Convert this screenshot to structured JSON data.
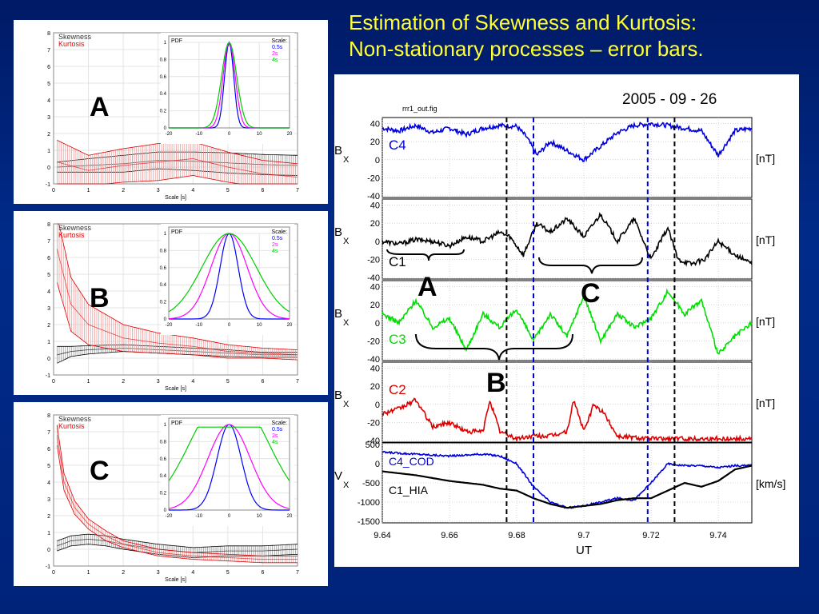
{
  "slide": {
    "title_line1": "Estimation of Skewness and Kurtosis:",
    "title_line2": "Non-stationary processes – error bars."
  },
  "colors": {
    "background": "#002b8a",
    "title": "#ffff33",
    "skewness": "#000000",
    "kurtosis": "#e00000",
    "c4": "#0000dd",
    "c1": "#000000",
    "c3": "#00dd00",
    "c2": "#dd0000"
  },
  "chart_data": [
    {
      "type": "line",
      "panel_letter": "A",
      "legend": [
        "Skewness",
        "Kurtosis"
      ],
      "xlabel": "Scale [s]",
      "xlim": [
        0,
        7
      ],
      "ylim": [
        -1,
        8
      ],
      "xticks": [
        0,
        1,
        2,
        3,
        4,
        5,
        6,
        7
      ],
      "yticks": [
        -1,
        0,
        1,
        2,
        3,
        4,
        5,
        6,
        7,
        8
      ],
      "series": [
        {
          "name": "Skewness",
          "x": [
            0.1,
            1,
            2,
            3,
            4,
            5,
            6,
            7
          ],
          "values": [
            0.0,
            0.1,
            0.2,
            0.4,
            0.35,
            0.25,
            0.15,
            0.1
          ],
          "err": [
            0.3,
            0.4,
            0.5,
            0.5,
            0.55,
            0.6,
            0.6,
            0.6
          ]
        },
        {
          "name": "Kurtosis",
          "x": [
            0.1,
            1,
            2,
            3,
            4,
            5,
            6,
            7
          ],
          "values": [
            0.3,
            -0.2,
            0.1,
            0.3,
            0.5,
            0.0,
            -0.4,
            -0.6
          ],
          "err": [
            1.3,
            0.9,
            1.0,
            1.1,
            1.0,
            0.9,
            0.8,
            0.8
          ]
        }
      ],
      "inset": {
        "title": "PDF",
        "legend_title": "Scale:",
        "legend": [
          "0.5s",
          "2s",
          "4s"
        ],
        "xlim": [
          -20,
          20
        ],
        "ylim": [
          0,
          1
        ],
        "xticks": [
          -20,
          -10,
          0,
          10,
          20
        ],
        "yticks": [
          0,
          0.2,
          0.4,
          0.6,
          0.8,
          1
        ],
        "widths": [
          1.5,
          2.0,
          2.5
        ]
      }
    },
    {
      "type": "line",
      "panel_letter": "B",
      "legend": [
        "Skewness",
        "Kurtosis"
      ],
      "xlabel": "Scale [s]",
      "xlim": [
        0,
        7
      ],
      "ylim": [
        -1,
        8
      ],
      "xticks": [
        0,
        1,
        2,
        3,
        4,
        5,
        6,
        7
      ],
      "yticks": [
        -1,
        0,
        1,
        2,
        3,
        4,
        5,
        6,
        7,
        8
      ],
      "series": [
        {
          "name": "Skewness",
          "x": [
            0.1,
            0.5,
            1,
            2,
            3,
            4,
            5,
            6,
            7
          ],
          "values": [
            0.2,
            0.4,
            0.5,
            0.6,
            0.5,
            0.4,
            0.3,
            0.2,
            0.2
          ],
          "err": [
            0.5,
            0.3,
            0.25,
            0.2,
            0.2,
            0.2,
            0.2,
            0.15,
            0.15
          ]
        },
        {
          "name": "Kurtosis",
          "x": [
            0.1,
            0.5,
            1,
            2,
            3,
            4,
            5,
            6,
            7
          ],
          "values": [
            6.5,
            3.2,
            2.0,
            1.2,
            0.9,
            0.7,
            0.4,
            0.3,
            0.2
          ],
          "err": [
            2.0,
            1.6,
            1.2,
            0.8,
            0.6,
            0.5,
            0.4,
            0.3,
            0.3
          ]
        }
      ],
      "inset": {
        "title": "PDF",
        "legend_title": "Scale:",
        "legend": [
          "0.5s",
          "2s",
          "4s"
        ],
        "xlim": [
          -20,
          20
        ],
        "ylim": [
          0,
          1
        ],
        "xticks": [
          -20,
          -10,
          0,
          10,
          20
        ],
        "yticks": [
          0,
          0.2,
          0.4,
          0.6,
          0.8,
          1
        ],
        "widths": [
          3,
          6,
          9
        ]
      }
    },
    {
      "type": "line",
      "panel_letter": "C",
      "legend": [
        "Skewness",
        "Kurtosis"
      ],
      "xlabel": "Scale [s]",
      "xlim": [
        0,
        7
      ],
      "ylim": [
        -1,
        8
      ],
      "xticks": [
        0,
        1,
        2,
        3,
        4,
        5,
        6,
        7
      ],
      "yticks": [
        -1,
        0,
        1,
        2,
        3,
        4,
        5,
        6,
        7,
        8
      ],
      "series": [
        {
          "name": "Skewness",
          "x": [
            0.1,
            0.5,
            1,
            1.5,
            2,
            3,
            4,
            5,
            6,
            7
          ],
          "values": [
            0.2,
            0.5,
            0.6,
            0.5,
            0.3,
            0.0,
            -0.2,
            -0.1,
            -0.1,
            0.0
          ],
          "err": [
            0.3,
            0.3,
            0.3,
            0.3,
            0.3,
            0.3,
            0.3,
            0.3,
            0.3,
            0.3
          ]
        },
        {
          "name": "Kurtosis",
          "x": [
            0.1,
            0.3,
            0.6,
            1,
            1.5,
            2,
            3,
            4,
            5,
            6,
            7
          ],
          "values": [
            6.8,
            4.0,
            2.5,
            1.5,
            0.8,
            0.3,
            -0.2,
            -0.4,
            -0.5,
            -0.6,
            -0.6
          ],
          "err": [
            0.6,
            0.5,
            0.4,
            0.3,
            0.3,
            0.2,
            0.2,
            0.2,
            0.2,
            0.2,
            0.2
          ]
        }
      ],
      "inset": {
        "title": "PDF",
        "legend_title": "Scale:",
        "legend": [
          "0.5s",
          "2s",
          "4s"
        ],
        "xlim": [
          -20,
          20
        ],
        "ylim": [
          0,
          1
        ],
        "xticks": [
          -20,
          -10,
          0,
          10,
          20
        ],
        "yticks": [
          0,
          0.2,
          0.4,
          0.6,
          0.8,
          1
        ],
        "widths": [
          4,
          7,
          10
        ]
      }
    },
    {
      "type": "line",
      "title": "2005 - 09 - 26",
      "file_label": "rrr1_out.fig",
      "xlabel": "UT",
      "xlim": [
        9.64,
        9.75
      ],
      "xticks": [
        9.64,
        9.66,
        9.68,
        9.7,
        9.72,
        9.74
      ],
      "vertical_lines": [
        {
          "x": 9.677,
          "color": "#000000"
        },
        {
          "x": 9.685,
          "color": "#0000dd"
        },
        {
          "x": 9.719,
          "color": "#0000dd"
        },
        {
          "x": 9.727,
          "color": "#000000"
        }
      ],
      "panels": [
        {
          "ylabel": "B",
          "ylabel_sub": "X",
          "unit": "[nT]",
          "label": "C4",
          "color": "#0000dd",
          "ylim": [
            -40,
            45
          ],
          "yticks": [
            40,
            20,
            0,
            -20,
            -40
          ],
          "x": [
            9.64,
            9.645,
            9.65,
            9.655,
            9.66,
            9.665,
            9.67,
            9.675,
            9.68,
            9.683,
            9.686,
            9.69,
            9.695,
            9.7,
            9.705,
            9.71,
            9.715,
            9.72,
            9.725,
            9.73,
            9.735,
            9.74,
            9.745,
            9.75
          ],
          "values": [
            35,
            32,
            38,
            30,
            35,
            28,
            35,
            38,
            37,
            25,
            5,
            20,
            10,
            0,
            15,
            30,
            38,
            40,
            38,
            35,
            32,
            5,
            32,
            35
          ]
        },
        {
          "ylabel": "B",
          "ylabel_sub": "X",
          "unit": "[nT]",
          "label": "C1",
          "color": "#000000",
          "ylim": [
            -40,
            45
          ],
          "yticks": [
            40,
            20,
            0,
            -20,
            -40
          ],
          "x": [
            9.64,
            9.645,
            9.65,
            9.655,
            9.66,
            9.665,
            9.67,
            9.675,
            9.678,
            9.682,
            9.686,
            9.69,
            9.695,
            9.7,
            9.705,
            9.71,
            9.715,
            9.72,
            9.725,
            9.728,
            9.732,
            9.736,
            9.74,
            9.745,
            9.75
          ],
          "values": [
            0,
            -3,
            2,
            0,
            -5,
            5,
            0,
            10,
            5,
            -15,
            20,
            10,
            25,
            5,
            30,
            0,
            25,
            -20,
            15,
            -20,
            -25,
            -20,
            0,
            -15,
            -25
          ]
        },
        {
          "ylabel": "B",
          "ylabel_sub": "X",
          "unit": "[nT]",
          "label": "C3",
          "color": "#00dd00",
          "ylim": [
            -40,
            45
          ],
          "yticks": [
            40,
            20,
            0,
            -20,
            -40
          ],
          "x": [
            9.64,
            9.645,
            9.65,
            9.655,
            9.66,
            9.665,
            9.67,
            9.675,
            9.68,
            9.685,
            9.69,
            9.695,
            9.7,
            9.705,
            9.71,
            9.715,
            9.72,
            9.725,
            9.73,
            9.735,
            9.74,
            9.745,
            9.75
          ],
          "values": [
            10,
            0,
            25,
            -5,
            5,
            -30,
            10,
            -5,
            15,
            -20,
            10,
            -15,
            30,
            -20,
            10,
            -5,
            5,
            35,
            10,
            25,
            -35,
            -15,
            0
          ]
        },
        {
          "ylabel": "B",
          "ylabel_sub": "X",
          "unit": "[nT]",
          "label": "C2",
          "color": "#dd0000",
          "ylim": [
            -40,
            45
          ],
          "yticks": [
            40,
            20,
            0,
            -20,
            -40
          ],
          "x": [
            9.64,
            9.645,
            9.65,
            9.655,
            9.66,
            9.665,
            9.67,
            9.672,
            9.675,
            9.68,
            9.685,
            9.69,
            9.695,
            9.697,
            9.7,
            9.703,
            9.706,
            9.71,
            9.72,
            9.73,
            9.74,
            9.75
          ],
          "values": [
            -10,
            -5,
            5,
            -25,
            -20,
            -30,
            -30,
            5,
            -30,
            -38,
            -35,
            -35,
            -30,
            5,
            -30,
            0,
            -10,
            -35,
            -38,
            -38,
            -38,
            -38
          ]
        },
        {
          "ylabel": "V",
          "ylabel_sub": "X",
          "unit": "[km/s]",
          "label": "C4_COD",
          "label2": "C1_HIA",
          "color": "#0000dd",
          "color2": "#000000",
          "ylim": [
            -1500,
            500
          ],
          "yticks": [
            500,
            0,
            -500,
            -1000,
            -1500
          ],
          "x": [
            9.64,
            9.65,
            9.66,
            9.67,
            9.675,
            9.68,
            9.685,
            9.69,
            9.695,
            9.7,
            9.705,
            9.71,
            9.715,
            9.72,
            9.725,
            9.73,
            9.735,
            9.74,
            9.745,
            9.75
          ],
          "values": [
            300,
            250,
            200,
            250,
            200,
            0,
            -600,
            -1000,
            -1150,
            -1100,
            -1000,
            -900,
            -950,
            -500,
            0,
            -50,
            -50,
            -100,
            -50,
            -50
          ],
          "values2": [
            -200,
            -300,
            -450,
            -550,
            -650,
            -700,
            -900,
            -1050,
            -1150,
            -1100,
            -1050,
            -950,
            -900,
            -900,
            -700,
            -500,
            -600,
            -450,
            -150,
            -50
          ]
        }
      ]
    }
  ],
  "overlay_letters": {
    "a": "A",
    "b": "B",
    "c": "C"
  }
}
